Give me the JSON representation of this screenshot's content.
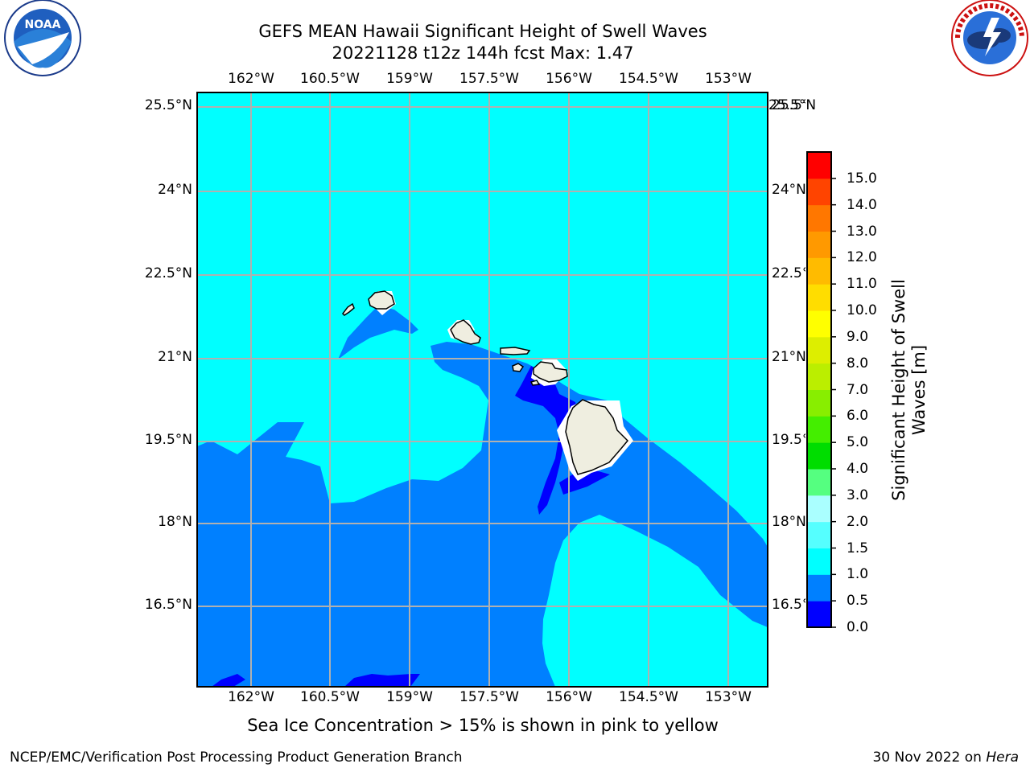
{
  "title_line1": "GEFS MEAN Hawaii Significant Height of Swell Waves",
  "title_line2": "20221128 t12z 144h fcst   Max: 1.47",
  "lon_labels": [
    "162°W",
    "160.5°W",
    "159°W",
    "157.5°W",
    "156°W",
    "154.5°W",
    "153°W"
  ],
  "lat_labels": [
    "25.5°N",
    "24°N",
    "22.5°N",
    "21°N",
    "19.5°N",
    "18°N",
    "16.5°N"
  ],
  "colorbar": {
    "title": "Significant Height of Swell Waves [m]",
    "ticks": [
      "0.0",
      "0.5",
      "1.0",
      "1.5",
      "2.0",
      "3.0",
      "4.0",
      "5.0",
      "6.0",
      "7.0",
      "8.0",
      "9.0",
      "10.0",
      "11.0",
      "12.0",
      "13.0",
      "14.0",
      "15.0"
    ],
    "colors": [
      "#0000ff",
      "#0080ff",
      "#00ffff",
      "#55ffff",
      "#aaffff",
      "#55ff80",
      "#00dd00",
      "#44ee00",
      "#88ee00",
      "#bbee00",
      "#ddee00",
      "#ffff00",
      "#ffdd00",
      "#ffbb00",
      "#ff9900",
      "#ff7700",
      "#ff4400",
      "#ff0000"
    ]
  },
  "map_colors": {
    "ocean_high": "#00ffff",
    "ocean_mid": "#0080ff",
    "ocean_low": "#0000ff",
    "land": "#efeee0",
    "grid": "#b0b0b0"
  },
  "note": "Sea Ice Concentration > 15% is shown in pink to yellow",
  "footer_left": "NCEP/EMC/Verification Post Processing Product Generation Branch",
  "footer_date": "30 Nov 2022 on ",
  "footer_machine": "Hera",
  "logo_left_text": "NOAA",
  "logo_right_text": "NATIONAL WEATHER SERVICE"
}
